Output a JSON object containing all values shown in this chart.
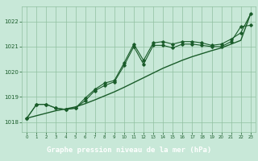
{
  "title": "Graphe pression niveau de la mer (hPa)",
  "bg_color": "#c8e8d8",
  "label_bg": "#2d6b3c",
  "label_fg": "#ffffff",
  "grid_color": "#90c0a0",
  "line_color": "#1a5c2a",
  "hours": [
    0,
    1,
    2,
    3,
    4,
    5,
    6,
    7,
    8,
    9,
    10,
    11,
    12,
    13,
    14,
    15,
    16,
    17,
    18,
    19,
    20,
    21,
    22,
    23
  ],
  "line_jagged1": [
    1018.15,
    1018.7,
    1018.7,
    1018.55,
    1018.5,
    1018.55,
    1018.95,
    1019.3,
    1019.55,
    1019.65,
    1020.35,
    1021.1,
    1020.45,
    1021.15,
    1021.2,
    1021.1,
    1021.2,
    1021.2,
    1021.15,
    1021.05,
    1021.1,
    1021.3,
    1021.55,
    1022.3
  ],
  "line_jagged2": [
    1018.15,
    1018.7,
    1018.7,
    1018.55,
    1018.5,
    1018.55,
    1018.85,
    1019.25,
    1019.45,
    1019.6,
    1020.25,
    1021.0,
    1020.3,
    1021.05,
    1021.05,
    1020.95,
    1021.1,
    1021.1,
    1021.05,
    1021.0,
    1021.0,
    1021.2,
    1021.8,
    1021.85
  ],
  "line_smooth": [
    1018.15,
    1018.25,
    1018.35,
    1018.45,
    1018.52,
    1018.6,
    1018.73,
    1018.88,
    1019.04,
    1019.2,
    1019.38,
    1019.57,
    1019.76,
    1019.95,
    1020.14,
    1020.3,
    1020.46,
    1020.6,
    1020.72,
    1020.84,
    1020.95,
    1021.1,
    1021.25,
    1022.3
  ],
  "ylim": [
    1017.6,
    1022.6
  ],
  "yticks": [
    1018,
    1019,
    1020,
    1021,
    1022
  ],
  "xlim": [
    -0.5,
    23.5
  ],
  "xticks": [
    0,
    1,
    2,
    3,
    4,
    5,
    6,
    7,
    8,
    9,
    10,
    11,
    12,
    13,
    14,
    15,
    16,
    17,
    18,
    19,
    20,
    21,
    22,
    23
  ]
}
